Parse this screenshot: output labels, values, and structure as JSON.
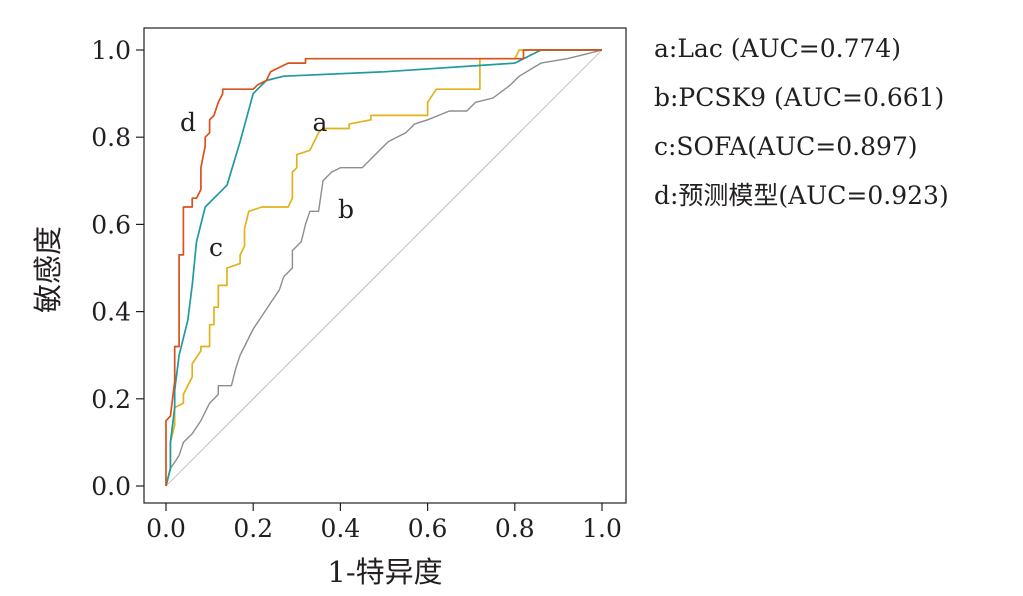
{
  "chart_data": {
    "type": "line",
    "xlabel": "1-特异度",
    "ylabel": "敏感度",
    "xlim": [
      0,
      1
    ],
    "ylim": [
      0,
      1
    ],
    "xticks": [
      "0.0",
      "0.2",
      "0.4",
      "0.6",
      "0.8",
      "1.0"
    ],
    "yticks": [
      "0.0",
      "0.2",
      "0.4",
      "0.6",
      "0.8",
      "1.0"
    ],
    "grid": false,
    "legend_position": "right",
    "reference_line": {
      "from": [
        0,
        0
      ],
      "to": [
        1,
        1
      ],
      "color": "#b5b5b5"
    },
    "series": [
      {
        "id": "a",
        "name": "a:Lac (AUC=0.774)",
        "label": "a",
        "color": "#e0b31a",
        "points": [
          [
            0,
            0
          ],
          [
            0.01,
            0.04
          ],
          [
            0.01,
            0.1
          ],
          [
            0.02,
            0.14
          ],
          [
            0.02,
            0.18
          ],
          [
            0.04,
            0.19
          ],
          [
            0.04,
            0.21
          ],
          [
            0.06,
            0.25
          ],
          [
            0.06,
            0.28
          ],
          [
            0.08,
            0.31
          ],
          [
            0.08,
            0.32
          ],
          [
            0.1,
            0.32
          ],
          [
            0.1,
            0.37
          ],
          [
            0.11,
            0.37
          ],
          [
            0.11,
            0.41
          ],
          [
            0.12,
            0.41
          ],
          [
            0.12,
            0.46
          ],
          [
            0.14,
            0.46
          ],
          [
            0.14,
            0.5
          ],
          [
            0.17,
            0.51
          ],
          [
            0.17,
            0.53
          ],
          [
            0.18,
            0.55
          ],
          [
            0.18,
            0.59
          ],
          [
            0.19,
            0.63
          ],
          [
            0.22,
            0.64
          ],
          [
            0.28,
            0.64
          ],
          [
            0.29,
            0.66
          ],
          [
            0.29,
            0.72
          ],
          [
            0.3,
            0.73
          ],
          [
            0.3,
            0.76
          ],
          [
            0.33,
            0.77
          ],
          [
            0.34,
            0.79
          ],
          [
            0.35,
            0.81
          ],
          [
            0.36,
            0.82
          ],
          [
            0.42,
            0.82
          ],
          [
            0.42,
            0.83
          ],
          [
            0.47,
            0.84
          ],
          [
            0.47,
            0.85
          ],
          [
            0.6,
            0.85
          ],
          [
            0.6,
            0.88
          ],
          [
            0.62,
            0.91
          ],
          [
            0.72,
            0.91
          ],
          [
            0.72,
            0.98
          ],
          [
            0.8,
            0.98
          ],
          [
            0.81,
            1.0
          ],
          [
            1,
            1
          ]
        ]
      },
      {
        "id": "b",
        "name": "b:PCSK9 (AUC=0.661)",
        "label": "b",
        "color": "#8d8d8d",
        "points": [
          [
            0,
            0
          ],
          [
            0.01,
            0.04
          ],
          [
            0.03,
            0.07
          ],
          [
            0.04,
            0.1
          ],
          [
            0.06,
            0.12
          ],
          [
            0.08,
            0.15
          ],
          [
            0.09,
            0.17
          ],
          [
            0.1,
            0.19
          ],
          [
            0.12,
            0.21
          ],
          [
            0.12,
            0.23
          ],
          [
            0.15,
            0.23
          ],
          [
            0.16,
            0.27
          ],
          [
            0.17,
            0.3
          ],
          [
            0.18,
            0.32
          ],
          [
            0.19,
            0.34
          ],
          [
            0.2,
            0.36
          ],
          [
            0.22,
            0.39
          ],
          [
            0.24,
            0.42
          ],
          [
            0.26,
            0.45
          ],
          [
            0.27,
            0.48
          ],
          [
            0.29,
            0.5
          ],
          [
            0.29,
            0.54
          ],
          [
            0.31,
            0.56
          ],
          [
            0.32,
            0.6
          ],
          [
            0.33,
            0.63
          ],
          [
            0.35,
            0.63
          ],
          [
            0.36,
            0.7
          ],
          [
            0.37,
            0.71
          ],
          [
            0.38,
            0.72
          ],
          [
            0.4,
            0.73
          ],
          [
            0.45,
            0.73
          ],
          [
            0.47,
            0.75
          ],
          [
            0.49,
            0.77
          ],
          [
            0.51,
            0.79
          ],
          [
            0.55,
            0.81
          ],
          [
            0.57,
            0.83
          ],
          [
            0.6,
            0.84
          ],
          [
            0.65,
            0.86
          ],
          [
            0.69,
            0.86
          ],
          [
            0.71,
            0.88
          ],
          [
            0.75,
            0.89
          ],
          [
            0.79,
            0.92
          ],
          [
            0.81,
            0.94
          ],
          [
            0.86,
            0.97
          ],
          [
            0.92,
            0.98
          ],
          [
            0.96,
            0.99
          ],
          [
            1,
            1
          ]
        ]
      },
      {
        "id": "c",
        "name": "c:SOFA(AUC=0.897)",
        "label": "c",
        "color": "#1e9aa0",
        "points": [
          [
            0,
            0
          ],
          [
            0.01,
            0.04
          ],
          [
            0.01,
            0.1
          ],
          [
            0.02,
            0.18
          ],
          [
            0.02,
            0.22
          ],
          [
            0.03,
            0.3
          ],
          [
            0.05,
            0.38
          ],
          [
            0.06,
            0.46
          ],
          [
            0.07,
            0.56
          ],
          [
            0.09,
            0.64
          ],
          [
            0.14,
            0.69
          ],
          [
            0.17,
            0.79
          ],
          [
            0.2,
            0.9
          ],
          [
            0.21,
            0.91
          ],
          [
            0.23,
            0.93
          ],
          [
            0.27,
            0.94
          ],
          [
            0.5,
            0.95
          ],
          [
            0.8,
            0.97
          ],
          [
            0.86,
            1.0
          ],
          [
            1,
            1
          ]
        ]
      },
      {
        "id": "d",
        "name": "d:预测模型(AUC=0.923)",
        "label": "d",
        "color": "#d9521b",
        "points": [
          [
            0,
            0
          ],
          [
            0,
            0.15
          ],
          [
            0.01,
            0.16
          ],
          [
            0.02,
            0.24
          ],
          [
            0.02,
            0.32
          ],
          [
            0.03,
            0.32
          ],
          [
            0.03,
            0.4
          ],
          [
            0.03,
            0.53
          ],
          [
            0.04,
            0.53
          ],
          [
            0.04,
            0.64
          ],
          [
            0.06,
            0.64
          ],
          [
            0.06,
            0.66
          ],
          [
            0.07,
            0.66
          ],
          [
            0.08,
            0.68
          ],
          [
            0.08,
            0.73
          ],
          [
            0.09,
            0.78
          ],
          [
            0.09,
            0.8
          ],
          [
            0.1,
            0.81
          ],
          [
            0.1,
            0.84
          ],
          [
            0.11,
            0.85
          ],
          [
            0.12,
            0.88
          ],
          [
            0.13,
            0.9
          ],
          [
            0.13,
            0.91
          ],
          [
            0.2,
            0.91
          ],
          [
            0.21,
            0.92
          ],
          [
            0.23,
            0.93
          ],
          [
            0.24,
            0.95
          ],
          [
            0.26,
            0.96
          ],
          [
            0.28,
            0.97
          ],
          [
            0.32,
            0.97
          ],
          [
            0.32,
            0.98
          ],
          [
            0.46,
            0.98
          ],
          [
            0.47,
            0.98
          ],
          [
            0.82,
            0.98
          ],
          [
            0.82,
            1.0
          ],
          [
            1,
            1
          ]
        ]
      }
    ]
  }
}
